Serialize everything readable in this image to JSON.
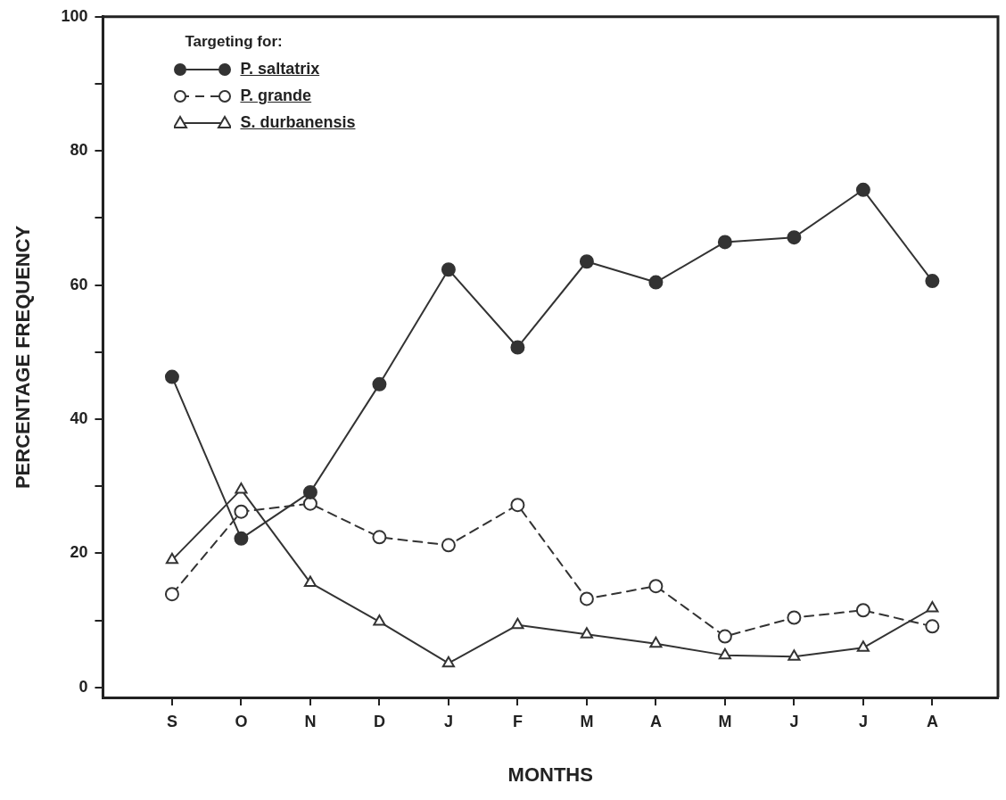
{
  "chart_data": {
    "type": "line",
    "xlabel": "MONTHS",
    "ylabel": "PERCENTAGE FREQUENCY",
    "legend_title": "Targeting for:",
    "legend": "top left",
    "grid": false,
    "categories": [
      "S",
      "O",
      "N",
      "D",
      "J",
      "F",
      "M",
      "A",
      "M",
      "J",
      "J",
      "A"
    ],
    "ylim": [
      -1.5,
      100
    ],
    "yticks": [
      0,
      {
        "value": 10,
        "label": null
      },
      20,
      {
        "value": 30,
        "label": null
      },
      40,
      {
        "value": 50,
        "label": null
      },
      60,
      {
        "value": 70,
        "label": null
      },
      80,
      {
        "value": 90,
        "label": null
      },
      100
    ],
    "series": [
      {
        "name": "P. saltatrix",
        "color": "#333333",
        "marker": "circle",
        "line_style": "solid",
        "values": [
          46.3,
          22.2,
          29.1,
          45.2,
          62.3,
          50.7,
          63.5,
          60.4,
          66.4,
          67.1,
          74.2,
          60.6
        ]
      },
      {
        "name": "P. grande",
        "color": "#333333",
        "marker": "circle",
        "line_style": "dashed",
        "values": [
          13.9,
          26.2,
          27.4,
          22.4,
          21.2,
          27.2,
          13.2,
          15.1,
          7.6,
          10.4,
          11.5,
          9.1
        ]
      },
      {
        "name": "S. durbanensis",
        "color": "#333333",
        "marker": "triangle",
        "line_style": "solid",
        "values": [
          19,
          29.5,
          15.6,
          9.8,
          3.6,
          9.3,
          7.9,
          6.5,
          4.8,
          4.6,
          5.9,
          11.8
        ]
      }
    ]
  }
}
